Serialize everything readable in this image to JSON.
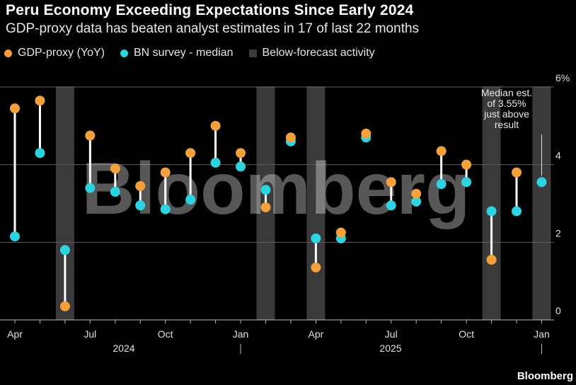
{
  "title": "Peru Economy Exceeding Expectations Since Early 2024",
  "subtitle": "GDP-proxy data has beaten analyst estimates in 17 of last 22 months",
  "legend": {
    "gdp_label": "GDP-proxy (YoY)",
    "survey_label": "BN survey - median",
    "below_label": "Below-forecast activity"
  },
  "watermark": "Bloomberg",
  "source": "Bloomberg",
  "colors": {
    "gdp": "#f5a13a",
    "survey": "#2ad4e0",
    "connector": "#ffffff",
    "shade": "#3a3a3a",
    "grid": "#5e5e5e"
  },
  "chart_data": {
    "type": "scatter",
    "title": "Peru Economy Exceeding Expectations Since Early 2024",
    "subtitle": "GDP-proxy data has beaten analyst estimates in 17 of last 22 months",
    "ylim": [
      0,
      6
    ],
    "y_ticks": [
      0,
      2,
      4,
      6
    ],
    "y_tick_labels": [
      "0",
      "2",
      "4",
      "6%"
    ],
    "x_tick_labels": [
      "Apr",
      "Jul",
      "Oct",
      "Jan",
      "Apr",
      "Jul",
      "Oct",
      "Jan"
    ],
    "year_labels": [
      "2024",
      "2025"
    ],
    "months": [
      "2024-04",
      "2024-05",
      "2024-06",
      "2024-07",
      "2024-08",
      "2024-09",
      "2024-10",
      "2024-11",
      "2024-12",
      "2025-01",
      "2025-02",
      "2025-03",
      "2025-04",
      "2025-05",
      "2025-06",
      "2025-07",
      "2025-08",
      "2025-09",
      "2025-10",
      "2025-11",
      "2025-12",
      "2026-01"
    ],
    "series": [
      {
        "name": "GDP-proxy (YoY)",
        "values": [
          5.45,
          5.65,
          0.35,
          4.75,
          3.9,
          3.45,
          3.8,
          4.3,
          5.0,
          4.3,
          2.9,
          4.7,
          1.35,
          2.25,
          4.8,
          3.55,
          3.25,
          4.35,
          4.0,
          1.55,
          3.8,
          null
        ]
      },
      {
        "name": "BN survey - median",
        "values": [
          2.15,
          4.3,
          1.8,
          3.4,
          3.3,
          2.95,
          2.85,
          3.1,
          4.05,
          3.95,
          3.35,
          4.6,
          2.1,
          2.1,
          4.7,
          2.95,
          3.05,
          3.5,
          3.55,
          2.8,
          2.8,
          3.55
        ]
      }
    ],
    "below_forecast_months": [
      "2024-06",
      "2025-02",
      "2025-04",
      "2025-11",
      "2026-01"
    ],
    "annotation": {
      "month": "2026-01",
      "text": [
        "Median est.",
        "of 3.55%",
        "just above",
        "result"
      ]
    },
    "grid": true,
    "legend_position": "top-left"
  }
}
